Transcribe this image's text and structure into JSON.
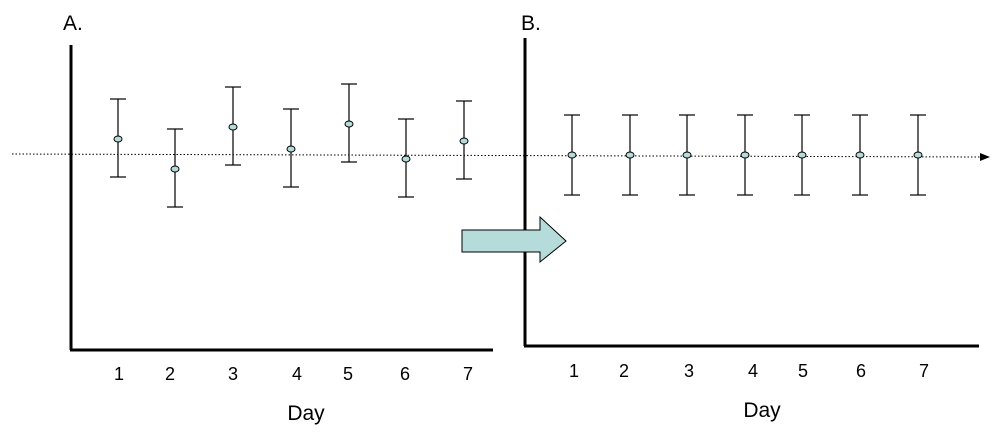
{
  "chart_data": [
    {
      "type": "scatter",
      "panel_label": "A.",
      "xlabel": "Day",
      "ylabel": "",
      "x": [
        1,
        2,
        3,
        4,
        5,
        6,
        7
      ],
      "y": [
        0.15,
        -0.15,
        0.27,
        0.05,
        0.3,
        -0.05,
        0.13
      ],
      "error": [
        [
          0.38,
          0.4
        ],
        [
          0.38,
          0.4
        ],
        [
          0.38,
          0.4
        ],
        [
          0.38,
          0.4
        ],
        [
          0.38,
          0.4
        ],
        [
          0.38,
          0.4
        ],
        [
          0.38,
          0.4
        ]
      ],
      "ylim": [
        -2.0,
        0.6
      ],
      "reference_line": 0,
      "grid": false,
      "point_color": "#b5dcdb"
    },
    {
      "type": "scatter",
      "panel_label": "B.",
      "xlabel": "Day",
      "ylabel": "",
      "x": [
        1,
        2,
        3,
        4,
        5,
        6,
        7
      ],
      "y": [
        0,
        0,
        0,
        0,
        0,
        0,
        0
      ],
      "error": [
        [
          0.4,
          0.4
        ],
        [
          0.4,
          0.4
        ],
        [
          0.4,
          0.4
        ],
        [
          0.4,
          0.4
        ],
        [
          0.4,
          0.4
        ],
        [
          0.4,
          0.4
        ],
        [
          0.4,
          0.4
        ]
      ],
      "ylim": [
        -2.0,
        0.6
      ],
      "reference_line": 0,
      "grid": false,
      "point_color": "#b5dcdb"
    }
  ],
  "arrow_color": "#b5dcdb"
}
